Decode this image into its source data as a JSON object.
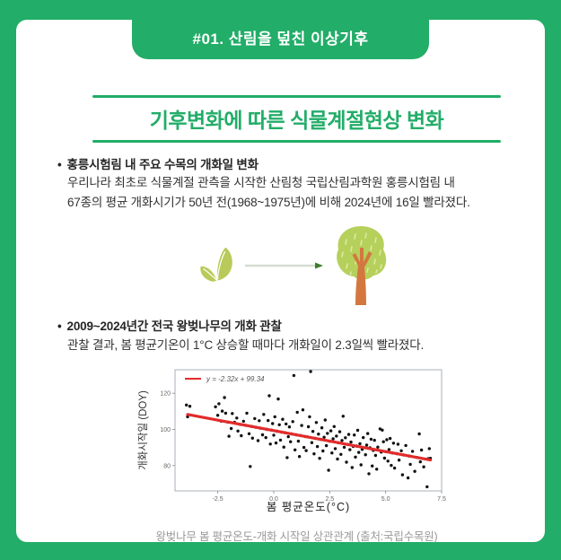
{
  "theme": {
    "green": "#22ad68",
    "red": "#e32b2b",
    "text_dark": "#313131",
    "caption_gray": "#9a9a9a",
    "leaf": "#b9ca5b",
    "canopy": "#b6d05c",
    "canopy_dash": "#dcea9e",
    "trunk": "#d4773f",
    "arrow_line": "#d5ddd1",
    "arrow_head": "#3d7d2e"
  },
  "header": {
    "tab_label": "#01. 산림을 덮친 이상기후"
  },
  "title": "기후변화에 따른 식물계절현상 변화",
  "section1": {
    "bullet": "•",
    "heading": "홍릉시험림 내 주요 수목의 개화일 변화",
    "line1": "우리나라 최초로 식물계절 관측을 시작한 산림청 국립산림과학원 홍릉시험림 내",
    "line2": "67종의 평균 개화시기가 50년 전(1968~1975년)에 비해 2024년에 16일 빨라졌다."
  },
  "illustration": {
    "items": [
      {
        "icon": "seedling-icon"
      },
      {
        "icon": "right-arrow-icon"
      },
      {
        "icon": "tree-icon"
      }
    ]
  },
  "section2": {
    "bullet": "•",
    "heading": "2009~2024년간 전국 왕벚나무의 개화 관찰",
    "line1": "관찰 결과, 봄 평균기온이 1°C 상승할 때마다 개화일이 2.3일씩 빨라졌다."
  },
  "chart_caption": "왕벚나무 봄 평균온도-개화 시작일 상관관계 (출처:국립수목원)",
  "chart_data": {
    "type": "scatter",
    "xlabel": "봄 평균온도(°C)",
    "ylabel": "개화시작일 (DOY)",
    "xlim": [
      -4.41,
      7.5
    ],
    "ylim": [
      66,
      133
    ],
    "x_ticks": [
      -2.5,
      0.0,
      2.5,
      5.0,
      7.5
    ],
    "y_ticks": [
      80,
      100,
      120
    ],
    "grid": false,
    "legend": {
      "label": "y = -2.32x + 99.34",
      "position": "upper left"
    },
    "regression": {
      "slope": -2.32,
      "intercept": 99.34,
      "x_start": -3.85,
      "x_end": 7.0,
      "color": "#e32b2b"
    },
    "points_color": "#111111",
    "points": [
      [
        -3.9,
        113.5
      ],
      [
        -3.85,
        107.0
      ],
      [
        -3.75,
        112.8
      ],
      [
        -2.6,
        112.5
      ],
      [
        -2.5,
        107.8
      ],
      [
        -2.45,
        114.2
      ],
      [
        -2.35,
        104.6
      ],
      [
        -2.3,
        110.1
      ],
      [
        -2.2,
        117.6
      ],
      [
        -2.15,
        109.0
      ],
      [
        -2.05,
        104.0
      ],
      [
        -2.0,
        96.2
      ],
      [
        -1.9,
        100.5
      ],
      [
        -1.85,
        108.8
      ],
      [
        -1.75,
        103.9
      ],
      [
        -1.65,
        106.3
      ],
      [
        -1.6,
        99.1
      ],
      [
        -1.5,
        102.8
      ],
      [
        -1.45,
        96.5
      ],
      [
        -1.35,
        104.5
      ],
      [
        -1.25,
        102.3
      ],
      [
        -1.2,
        109.0
      ],
      [
        -1.1,
        97.6
      ],
      [
        -1.05,
        79.5
      ],
      [
        -1.0,
        101.7
      ],
      [
        -0.95,
        95.2
      ],
      [
        -0.85,
        106.0
      ],
      [
        -0.8,
        101.2
      ],
      [
        -0.7,
        93.8
      ],
      [
        -0.65,
        104.8
      ],
      [
        -0.6,
        100.7
      ],
      [
        -0.5,
        97.0
      ],
      [
        -0.45,
        108.3
      ],
      [
        -0.35,
        95.5
      ],
      [
        -0.3,
        100.0
      ],
      [
        -0.25,
        104.9
      ],
      [
        -0.2,
        118.6
      ],
      [
        -0.15,
        91.9
      ],
      [
        -0.1,
        99.6
      ],
      [
        -0.05,
        103.2
      ],
      [
        0.0,
        96.8
      ],
      [
        0.05,
        107.0
      ],
      [
        0.1,
        92.5
      ],
      [
        0.15,
        99.0
      ],
      [
        0.2,
        116.8
      ],
      [
        0.25,
        102.6
      ],
      [
        0.3,
        94.1
      ],
      [
        0.35,
        98.5
      ],
      [
        0.4,
        105.6
      ],
      [
        0.45,
        90.2
      ],
      [
        0.5,
        98.2
      ],
      [
        0.55,
        103.0
      ],
      [
        0.6,
        84.4
      ],
      [
        0.65,
        96.0
      ],
      [
        0.7,
        101.4
      ],
      [
        0.75,
        93.2
      ],
      [
        0.8,
        97.5
      ],
      [
        0.85,
        104.3
      ],
      [
        0.9,
        129.8
      ],
      [
        0.95,
        88.7
      ],
      [
        1.0,
        97.0
      ],
      [
        1.05,
        109.5
      ],
      [
        1.1,
        93.5
      ],
      [
        1.15,
        85.0
      ],
      [
        1.2,
        96.6
      ],
      [
        1.25,
        102.2
      ],
      [
        1.3,
        110.8
      ],
      [
        1.35,
        90.0
      ],
      [
        1.4,
        96.1
      ],
      [
        1.45,
        88.3
      ],
      [
        1.5,
        95.9
      ],
      [
        1.55,
        101.5
      ],
      [
        1.6,
        107.0
      ],
      [
        1.65,
        132.0
      ],
      [
        1.7,
        92.7
      ],
      [
        1.75,
        98.9
      ],
      [
        1.8,
        86.5
      ],
      [
        1.85,
        95.1
      ],
      [
        1.9,
        103.8
      ],
      [
        1.95,
        90.5
      ],
      [
        2.0,
        97.4
      ],
      [
        2.05,
        84.0
      ],
      [
        2.1,
        94.5
      ],
      [
        2.15,
        100.9
      ],
      [
        2.2,
        88.1
      ],
      [
        2.25,
        95.7
      ],
      [
        2.3,
        105.2
      ],
      [
        2.35,
        91.0
      ],
      [
        2.4,
        97.8
      ],
      [
        2.45,
        77.4
      ],
      [
        2.5,
        93.5
      ],
      [
        2.55,
        99.2
      ],
      [
        2.6,
        87.0
      ],
      [
        2.65,
        94.8
      ],
      [
        2.7,
        101.6
      ],
      [
        2.75,
        89.4
      ],
      [
        2.8,
        96.3
      ],
      [
        2.85,
        83.6
      ],
      [
        2.9,
        92.6
      ],
      [
        2.95,
        98.7
      ],
      [
        3.0,
        86.2
      ],
      [
        3.05,
        93.9
      ],
      [
        3.1,
        107.3
      ],
      [
        3.15,
        90.1
      ],
      [
        3.2,
        95.4
      ],
      [
        3.25,
        81.9
      ],
      [
        3.3,
        91.7
      ],
      [
        3.35,
        97.2
      ],
      [
        3.4,
        88.8
      ],
      [
        3.45,
        93.0
      ],
      [
        3.5,
        78.9
      ],
      [
        3.55,
        90.6
      ],
      [
        3.6,
        96.9
      ],
      [
        3.65,
        84.7
      ],
      [
        3.7,
        90.8
      ],
      [
        3.75,
        99.5
      ],
      [
        3.8,
        87.3
      ],
      [
        3.85,
        92.1
      ],
      [
        3.9,
        80.4
      ],
      [
        3.95,
        89.0
      ],
      [
        4.0,
        95.5
      ],
      [
        4.1,
        86.0
      ],
      [
        4.15,
        91.3
      ],
      [
        4.2,
        97.7
      ],
      [
        4.25,
        75.5
      ],
      [
        4.3,
        89.8
      ],
      [
        4.35,
        94.6
      ],
      [
        4.4,
        79.8
      ],
      [
        4.45,
        88.4
      ],
      [
        4.5,
        94.0
      ],
      [
        4.55,
        85.6
      ],
      [
        4.6,
        78.0
      ],
      [
        4.65,
        90.2
      ],
      [
        4.75,
        100.3
      ],
      [
        4.8,
        87.5
      ],
      [
        4.85,
        99.6
      ],
      [
        4.9,
        93.2
      ],
      [
        4.95,
        84.1
      ],
      [
        5.0,
        87.7
      ],
      [
        5.05,
        94.3
      ],
      [
        5.1,
        82.5
      ],
      [
        5.15,
        88.9
      ],
      [
        5.2,
        95.0
      ],
      [
        5.25,
        80.1
      ],
      [
        5.3,
        87.0
      ],
      [
        5.35,
        92.4
      ],
      [
        5.4,
        78.6
      ],
      [
        5.5,
        86.6
      ],
      [
        5.55,
        91.8
      ],
      [
        5.6,
        83.0
      ],
      [
        5.7,
        88.2
      ],
      [
        5.75,
        74.9
      ],
      [
        5.8,
        85.9
      ],
      [
        5.9,
        91.1
      ],
      [
        6.0,
        73.2
      ],
      [
        6.05,
        85.3
      ],
      [
        6.1,
        80.7
      ],
      [
        6.2,
        87.9
      ],
      [
        6.3,
        76.8
      ],
      [
        6.4,
        84.5
      ],
      [
        6.5,
        97.5
      ],
      [
        6.55,
        82.1
      ],
      [
        6.6,
        88.6
      ],
      [
        6.7,
        79.3
      ],
      [
        6.85,
        68.3
      ],
      [
        6.9,
        83.8
      ],
      [
        6.95,
        89.4
      ],
      [
        7.0,
        84.0
      ]
    ]
  }
}
